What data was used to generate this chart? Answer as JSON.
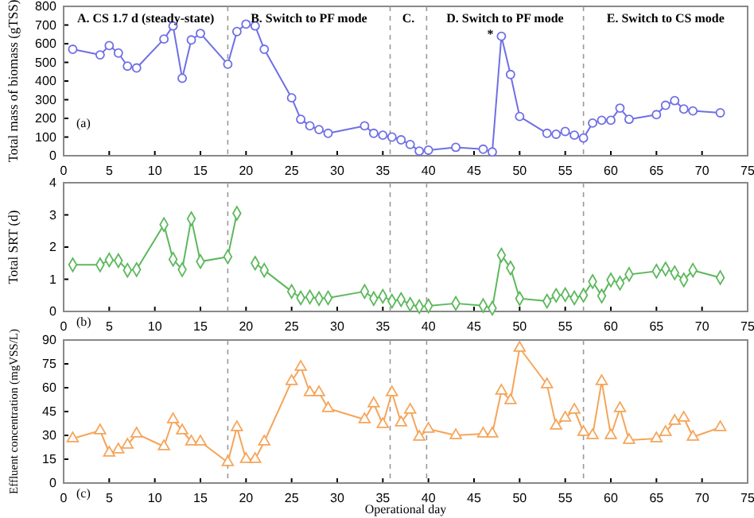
{
  "chart_data": [
    {
      "type": "line",
      "ylabel": "Total mass of biomass (gTSS)",
      "marker": "circle",
      "x": [
        1,
        4,
        5,
        6,
        7,
        8,
        11,
        12,
        13,
        14,
        15,
        18,
        19,
        20,
        21,
        22,
        25,
        26,
        27,
        28,
        29,
        33,
        34,
        35,
        36,
        37,
        38,
        39,
        40,
        43,
        46,
        47,
        48,
        49,
        50,
        53,
        54,
        55,
        56,
        57,
        58,
        59,
        60,
        61,
        62,
        65,
        66,
        67,
        68,
        69,
        72
      ],
      "series": [
        {
          "color": "#6f6fe6",
          "values": [
            570,
            540,
            590,
            550,
            480,
            470,
            625,
            695,
            415,
            620,
            655,
            490,
            665,
            705,
            695,
            570,
            310,
            195,
            160,
            140,
            120,
            160,
            120,
            110,
            100,
            85,
            60,
            25,
            30,
            45,
            35,
            20,
            640,
            435,
            210,
            120,
            115,
            130,
            110,
            95,
            175,
            190,
            190,
            255,
            195,
            220,
            270,
            295,
            250,
            240,
            230
          ]
        }
      ],
      "xlim": [
        0,
        75
      ],
      "xticks": [
        0,
        5,
        10,
        15,
        20,
        25,
        30,
        35,
        40,
        45,
        50,
        55,
        60,
        65,
        70,
        75
      ],
      "ylim": [
        0,
        800
      ],
      "yticks": [
        0,
        100,
        200,
        300,
        400,
        500,
        600,
        700,
        800
      ],
      "ref_lines": [
        {
          "axis": "x",
          "value": 18,
          "color": "#999999",
          "line_style": "dashed"
        },
        {
          "axis": "x",
          "value": 35.8,
          "color": "#999999",
          "line_style": "dashed"
        },
        {
          "axis": "x",
          "value": 39.8,
          "color": "#999999",
          "line_style": "dashed"
        },
        {
          "axis": "x",
          "value": 57,
          "color": "#999999",
          "line_style": "dashed"
        }
      ],
      "annotations": [
        "A. CS 1.7 d (steady-state)",
        "B. Switch to PF mode",
        "C.",
        "D. Switch to PF mode",
        "E. Switch to CS mode",
        {
          "text": "*",
          "x": 48,
          "y": 640
        },
        "(a)"
      ]
    },
    {
      "type": "line",
      "ylabel": "Total SRT (d)",
      "marker": "diamond",
      "x": [
        1,
        4,
        5,
        6,
        7,
        8,
        11,
        12,
        13,
        14,
        15,
        18,
        19,
        20,
        21,
        22,
        25,
        26,
        27,
        28,
        29,
        33,
        34,
        35,
        36,
        37,
        38,
        39,
        40,
        43,
        46,
        47,
        48,
        49,
        50,
        53,
        54,
        55,
        56,
        57,
        58,
        59,
        60,
        61,
        62,
        65,
        66,
        67,
        68,
        69,
        72
      ],
      "series": [
        {
          "color": "#5cb85c",
          "values": [
            1.45,
            1.45,
            1.6,
            1.58,
            1.28,
            1.3,
            2.7,
            1.62,
            1.3,
            2.88,
            1.55,
            1.7,
            3.05,
            null,
            1.5,
            1.28,
            0.62,
            0.42,
            0.45,
            0.4,
            0.42,
            0.62,
            0.4,
            0.47,
            0.32,
            0.37,
            0.22,
            0.15,
            0.17,
            0.25,
            0.18,
            0.1,
            1.75,
            1.35,
            0.4,
            0.32,
            0.5,
            0.52,
            0.42,
            0.5,
            0.93,
            0.48,
            0.98,
            0.88,
            1.15,
            1.25,
            1.32,
            1.2,
            0.98,
            1.28,
            1.05
          ]
        }
      ],
      "xlim": [
        0,
        75
      ],
      "xticks": [
        0,
        5,
        10,
        15,
        20,
        25,
        30,
        35,
        40,
        45,
        50,
        55,
        60,
        65,
        70,
        75
      ],
      "ylim": [
        0,
        4
      ],
      "yticks": [
        0,
        1,
        2,
        3,
        4
      ],
      "ref_lines": [
        {
          "axis": "x",
          "value": 18,
          "color": "#999999",
          "line_style": "dashed"
        },
        {
          "axis": "x",
          "value": 35.8,
          "color": "#999999",
          "line_style": "dashed"
        },
        {
          "axis": "x",
          "value": 39.8,
          "color": "#999999",
          "line_style": "dashed"
        },
        {
          "axis": "x",
          "value": 57,
          "color": "#999999",
          "line_style": "dashed"
        }
      ],
      "annotations": [
        "(b)"
      ]
    },
    {
      "type": "line",
      "ylabel": "Effluent concentration (mgVSS/L)",
      "xlabel": "Operational day",
      "marker": "triangle",
      "x": [
        1,
        4,
        5,
        6,
        7,
        8,
        11,
        12,
        13,
        14,
        15,
        18,
        19,
        20,
        21,
        22,
        25,
        26,
        27,
        28,
        29,
        33,
        34,
        35,
        36,
        37,
        38,
        39,
        40,
        43,
        46,
        47,
        48,
        49,
        50,
        53,
        54,
        55,
        56,
        57,
        58,
        59,
        60,
        61,
        62,
        65,
        66,
        67,
        68,
        69,
        72
      ],
      "series": [
        {
          "color": "#f5a55a",
          "values": [
            28,
            33,
            19,
            21,
            24,
            31,
            23,
            40,
            33,
            26,
            26,
            13,
            35,
            15,
            15,
            26,
            64,
            73,
            57,
            57,
            47,
            40,
            50,
            37,
            57,
            38,
            46,
            29,
            34,
            30,
            31,
            31,
            58,
            52,
            85,
            62,
            36,
            41,
            46,
            32,
            30,
            64,
            30,
            47,
            27,
            28,
            32,
            39,
            41,
            29,
            35
          ]
        }
      ],
      "xlim": [
        0,
        75
      ],
      "xticks": [
        0,
        5,
        10,
        15,
        20,
        25,
        30,
        35,
        40,
        45,
        50,
        55,
        60,
        65,
        70,
        75
      ],
      "ylim": [
        0,
        90
      ],
      "yticks": [
        0,
        15,
        30,
        45,
        60,
        75,
        90
      ],
      "ref_lines": [
        {
          "axis": "x",
          "value": 18,
          "color": "#999999",
          "line_style": "dashed"
        },
        {
          "axis": "x",
          "value": 35.8,
          "color": "#999999",
          "line_style": "dashed"
        },
        {
          "axis": "x",
          "value": 39.8,
          "color": "#999999",
          "line_style": "dashed"
        },
        {
          "axis": "x",
          "value": 57,
          "color": "#999999",
          "line_style": "dashed"
        }
      ],
      "annotations": [
        "(c)"
      ]
    }
  ]
}
